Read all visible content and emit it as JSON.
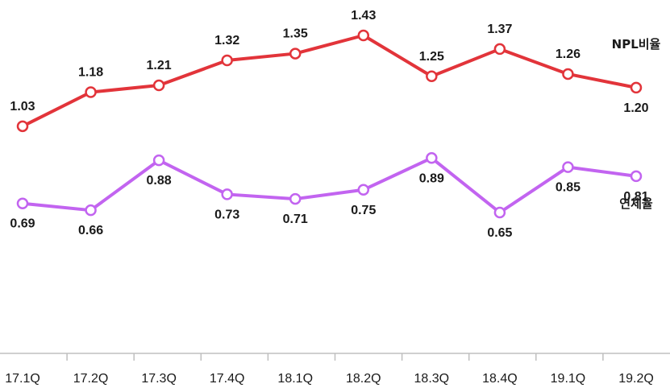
{
  "chart_data": {
    "type": "line",
    "categories": [
      "17.1Q",
      "17.2Q",
      "17.3Q",
      "17.4Q",
      "18.1Q",
      "18.2Q",
      "18.3Q",
      "18.4Q",
      "19.1Q",
      "19.2Q"
    ],
    "series": [
      {
        "name": "NPL비율",
        "color": "#e2343a",
        "values": [
          1.03,
          1.18,
          1.21,
          1.32,
          1.35,
          1.43,
          1.25,
          1.37,
          1.26,
          1.2
        ],
        "labels": [
          "1.03",
          "1.18",
          "1.21",
          "1.32",
          "1.35",
          "1.43",
          "1.25",
          "1.37",
          "1.26",
          "1.20"
        ]
      },
      {
        "name": "연체율",
        "color": "#c264f0",
        "values": [
          0.69,
          0.66,
          0.88,
          0.73,
          0.71,
          0.75,
          0.89,
          0.65,
          0.85,
          0.81
        ],
        "labels": [
          "0.69",
          "0.66",
          "0.88",
          "0.73",
          "0.71",
          "0.75",
          "0.89",
          "0.65",
          "0.85",
          "0.81"
        ]
      }
    ],
    "label_positions": {
      "NPL비율": [
        "above",
        "above",
        "above",
        "above",
        "above",
        "above",
        "above",
        "above",
        "above",
        "below"
      ],
      "연체율": [
        "below",
        "below",
        "below",
        "below",
        "below",
        "below",
        "below",
        "below",
        "below",
        "below"
      ]
    },
    "grid": false,
    "legend": "inline-right"
  }
}
